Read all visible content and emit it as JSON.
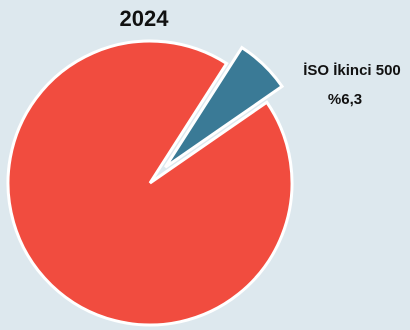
{
  "chart_data": {
    "type": "pie",
    "title": "2024",
    "slices": [
      {
        "label": "",
        "value": 93.7,
        "color": "#f14c3f"
      },
      {
        "label": "İSO İkinci 500",
        "value_label": "%6,3",
        "value": 6.3,
        "color": "#3a7a96",
        "exploded": true
      }
    ],
    "background": "#dde8ee"
  }
}
